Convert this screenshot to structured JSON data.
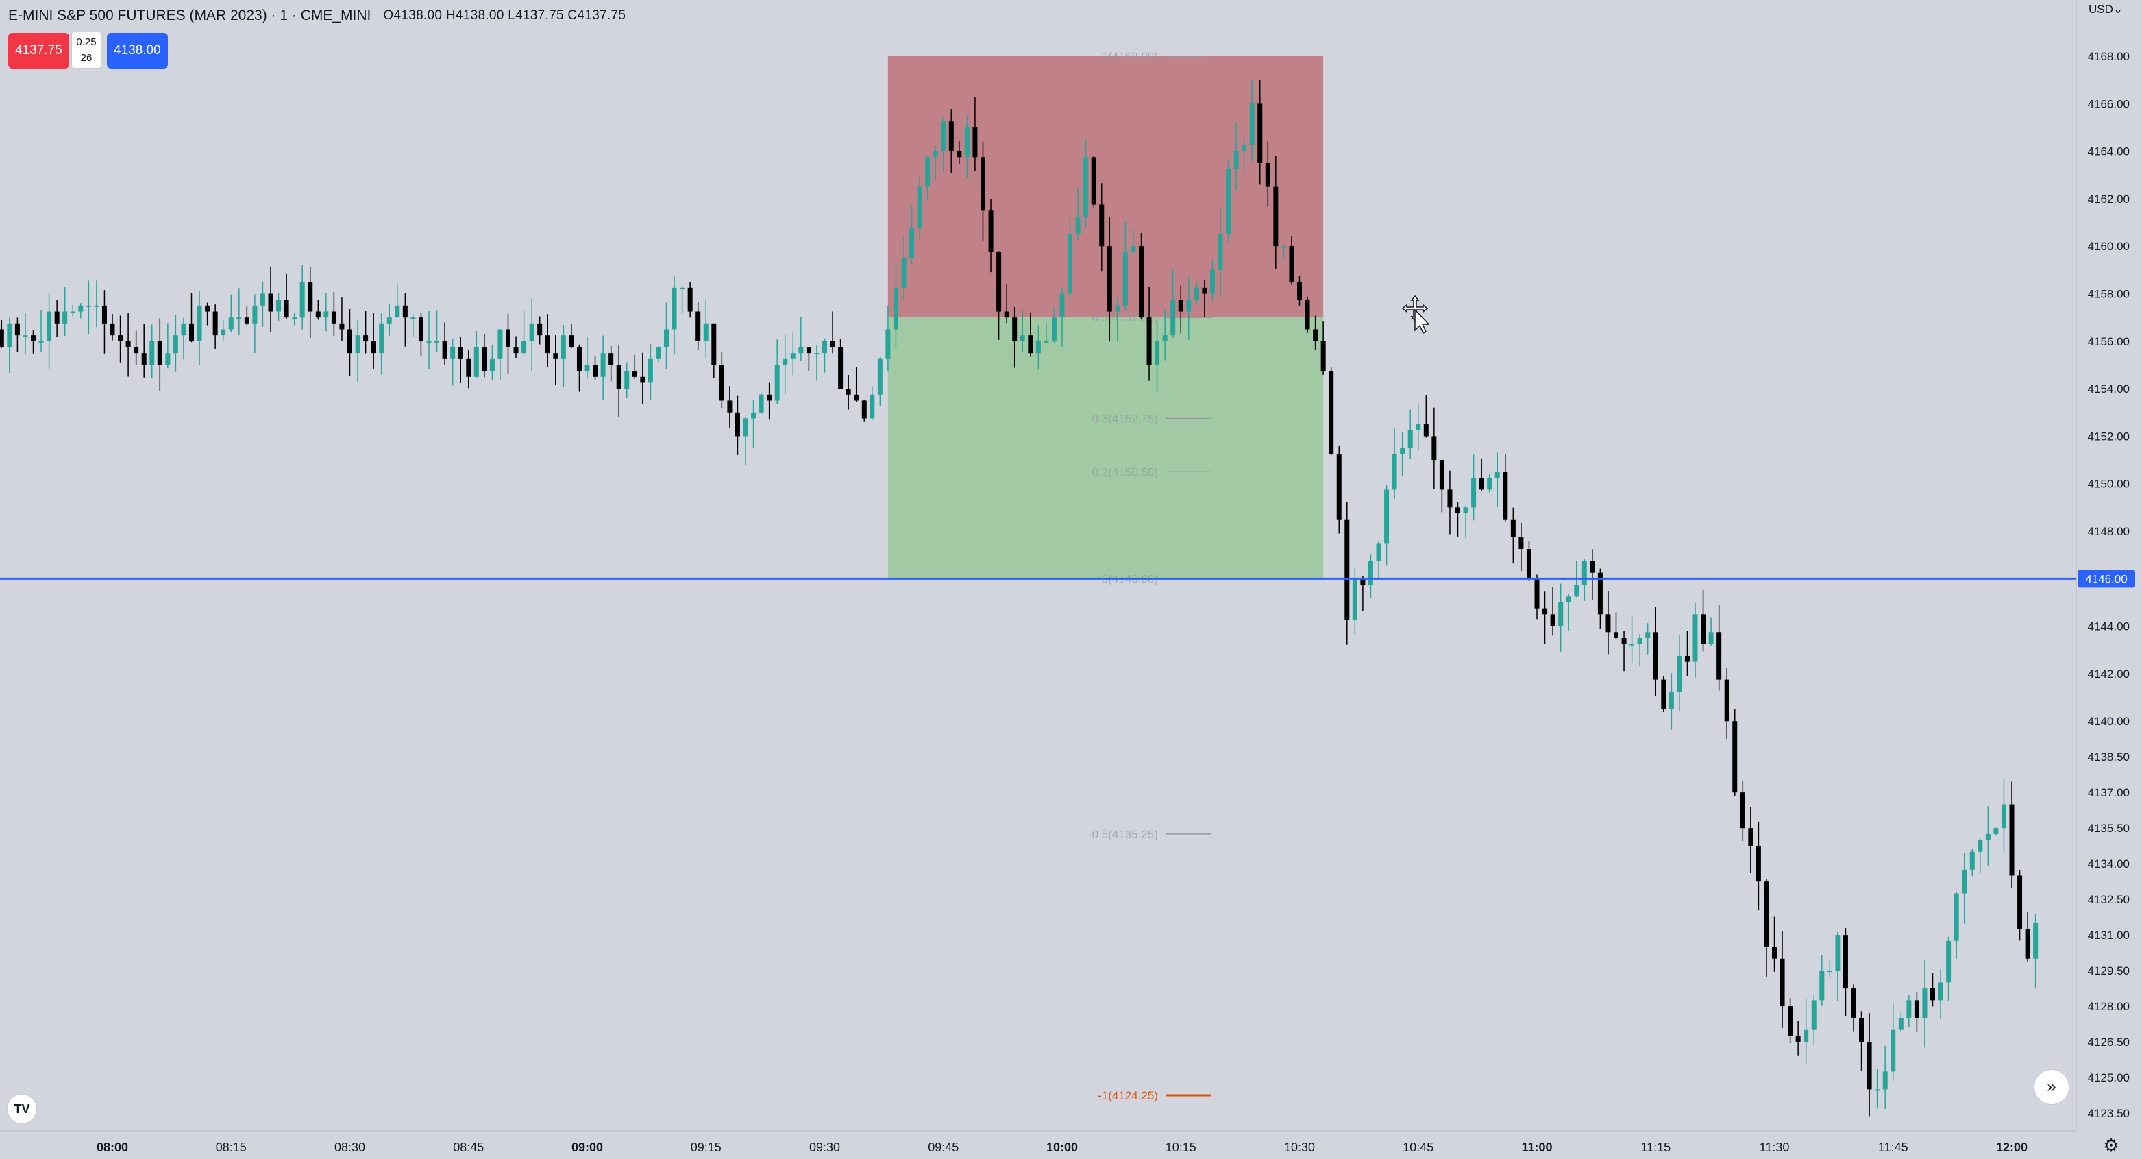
{
  "header": {
    "symbol_title": "E-MINI S&P 500 FUTURES (MAR 2023) · 1 · CME_MINI",
    "ohlc": "O4138.00 H4138.00 L4137.75 C4137.75"
  },
  "trade": {
    "sell_price": "4137.75",
    "spread_tick": "0.25",
    "spread_qty": "26",
    "buy_price": "4138.00"
  },
  "currency_label": "USD",
  "icons": {
    "logo": "tradingview-logo-icon",
    "scroll": "scroll-to-realtime-icon",
    "settings": "gear-icon",
    "cursor": "move-cursor-icon"
  },
  "colors": {
    "background": "#d2d5dd",
    "bull": "#26a69a",
    "bear": "#000000",
    "risk_zone": "#c07c83",
    "reward_zone": "#9ec9a0",
    "horizontal_line": "#2962ff",
    "fib_extension": "#e65100"
  },
  "chart_data": {
    "type": "candlestick",
    "y_axis": {
      "min": 4122.5,
      "max": 4169.5,
      "ticks": [
        "4168.00",
        "4166.00",
        "4164.00",
        "4162.00",
        "4160.00",
        "4158.00",
        "4156.00",
        "4154.00",
        "4152.00",
        "4150.00",
        "4148.00",
        "4146.00",
        "4144.00",
        "4142.00",
        "4140.00",
        "4138.50",
        "4137.00",
        "4135.50",
        "4134.00",
        "4132.50",
        "4131.00",
        "4129.50",
        "4128.00",
        "4126.50",
        "4125.00",
        "4123.50"
      ]
    },
    "x_axis": {
      "ticks": [
        {
          "label": "08:00",
          "bold": true
        },
        {
          "label": "08:15",
          "bold": false
        },
        {
          "label": "08:30",
          "bold": false
        },
        {
          "label": "08:45",
          "bold": false
        },
        {
          "label": "09:00",
          "bold": true
        },
        {
          "label": "09:15",
          "bold": false
        },
        {
          "label": "09:30",
          "bold": false
        },
        {
          "label": "09:45",
          "bold": false
        },
        {
          "label": "10:00",
          "bold": true
        },
        {
          "label": "10:15",
          "bold": false
        },
        {
          "label": "10:30",
          "bold": false
        },
        {
          "label": "10:45",
          "bold": false
        },
        {
          "label": "11:00",
          "bold": true
        },
        {
          "label": "11:15",
          "bold": false
        },
        {
          "label": "11:30",
          "bold": false
        },
        {
          "label": "11:45",
          "bold": false
        },
        {
          "label": "12:00",
          "bold": true
        }
      ]
    },
    "horizontal_line": {
      "price": 4146.0,
      "label": "4146.00"
    },
    "zones": {
      "upper_price": 4168.0,
      "mid_price": 4157.0,
      "lower_price": 4146.0,
      "start_time": "09:38",
      "end_time": "10:33"
    },
    "fib_levels": [
      {
        "label": "1(4168.00)",
        "price": 4168.0
      },
      {
        "label": "0.5(4157.00)",
        "price": 4157.0
      },
      {
        "label": "0.3(4152.75)",
        "price": 4152.75
      },
      {
        "label": "0.2(4150.50)",
        "price": 4150.5
      },
      {
        "label": "0(4146.00)",
        "price": 4146.0
      },
      {
        "label": "-0.5(4135.25)",
        "price": 4135.25
      },
      {
        "label": "-1(4124.25)",
        "price": 4124.25,
        "emphasis": true
      }
    ],
    "series": [
      {
        "name": "",
        "anchors": [
          {
            "time": "07:40",
            "close": 4160.5
          },
          {
            "time": "07:46",
            "close": 4156.0
          },
          {
            "time": "07:55",
            "close": 4157.5
          },
          {
            "time": "08:05",
            "close": 4155.5
          },
          {
            "time": "08:15",
            "close": 4157.5
          },
          {
            "time": "08:24",
            "close": 4157.8
          },
          {
            "time": "08:30",
            "close": 4155.5
          },
          {
            "time": "08:37",
            "close": 4157.2
          },
          {
            "time": "08:45",
            "close": 4155.0
          },
          {
            "time": "08:53",
            "close": 4156.5
          },
          {
            "time": "09:00",
            "close": 4155.0
          },
          {
            "time": "09:07",
            "close": 4154.5
          },
          {
            "time": "09:12",
            "close": 4158.5
          },
          {
            "time": "09:15",
            "close": 4156.0
          },
          {
            "time": "09:19",
            "close": 4152.5
          },
          {
            "time": "09:26",
            "close": 4155.0
          },
          {
            "time": "09:30",
            "close": 4156.0
          },
          {
            "time": "09:35",
            "close": 4153.0
          },
          {
            "time": "09:38",
            "close": 4157.0
          },
          {
            "time": "09:42",
            "close": 4162.5
          },
          {
            "time": "09:45",
            "close": 4165.0
          },
          {
            "time": "09:49",
            "close": 4164.0
          },
          {
            "time": "09:52",
            "close": 4157.0
          },
          {
            "time": "09:57",
            "close": 4155.5
          },
          {
            "time": "10:00",
            "close": 4158.0
          },
          {
            "time": "10:03",
            "close": 4163.5
          },
          {
            "time": "10:06",
            "close": 4157.0
          },
          {
            "time": "10:09",
            "close": 4160.0
          },
          {
            "time": "10:11",
            "close": 4155.0
          },
          {
            "time": "10:14",
            "close": 4157.5
          },
          {
            "time": "10:18",
            "close": 4157.8
          },
          {
            "time": "10:21",
            "close": 4162.5
          },
          {
            "time": "10:24",
            "close": 4166.0
          },
          {
            "time": "10:27",
            "close": 4160.0
          },
          {
            "time": "10:30",
            "close": 4158.0
          },
          {
            "time": "10:33",
            "close": 4155.5
          },
          {
            "time": "10:36",
            "close": 4145.0
          },
          {
            "time": "10:38",
            "close": 4145.5
          },
          {
            "time": "10:42",
            "close": 4151.0
          },
          {
            "time": "10:45",
            "close": 4152.0
          },
          {
            "time": "10:49",
            "close": 4149.5
          },
          {
            "time": "10:55",
            "close": 4150.0
          },
          {
            "time": "11:00",
            "close": 4145.5
          },
          {
            "time": "11:02",
            "close": 4144.5
          },
          {
            "time": "11:06",
            "close": 4147.0
          },
          {
            "time": "11:10",
            "close": 4143.0
          },
          {
            "time": "11:14",
            "close": 4143.0
          },
          {
            "time": "11:16",
            "close": 4141.0
          },
          {
            "time": "11:20",
            "close": 4144.0
          },
          {
            "time": "11:22",
            "close": 4143.5
          },
          {
            "time": "11:26",
            "close": 4135.5
          },
          {
            "time": "11:30",
            "close": 4129.5
          },
          {
            "time": "11:33",
            "close": 4126.5
          },
          {
            "time": "11:38",
            "close": 4131.0
          },
          {
            "time": "11:42",
            "close": 4124.5
          },
          {
            "time": "11:46",
            "close": 4127.5
          },
          {
            "time": "11:50",
            "close": 4128.5
          },
          {
            "time": "11:55",
            "close": 4134.5
          },
          {
            "time": "11:59",
            "close": 4136.0
          },
          {
            "time": "12:02",
            "close": 4129.5
          },
          {
            "time": "12:04",
            "close": 4133.0
          }
        ]
      }
    ]
  }
}
